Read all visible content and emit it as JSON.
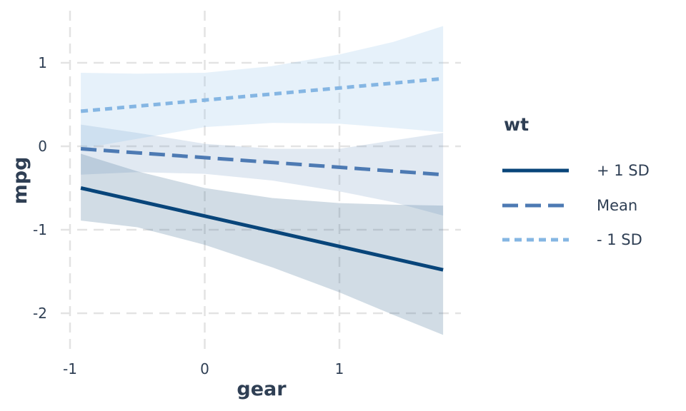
{
  "chart_data": {
    "type": "line",
    "xlabel": "gear",
    "ylabel": "mpg",
    "xlim": [
      -1.06,
      1.9
    ],
    "ylim": [
      -2.48,
      1.6
    ],
    "x_ticks": [
      -1,
      0,
      1
    ],
    "x_tick_labels": [
      "-1",
      "0",
      "1"
    ],
    "y_ticks": [
      -2,
      -1,
      0,
      1
    ],
    "y_tick_labels": [
      "-2",
      "-1",
      "0",
      "1"
    ],
    "grid": true,
    "legend": {
      "title": "wt",
      "position": "right"
    },
    "series": [
      {
        "name": "+ 1 SD",
        "color": "#08457a",
        "dash": "solid",
        "x": [
          -0.92,
          1.77
        ],
        "y": [
          -0.5,
          -1.48
        ],
        "band": {
          "x": [
            -0.92,
            -0.5,
            0.0,
            0.5,
            1.0,
            1.4,
            1.77
          ],
          "lower": [
            -0.89,
            -0.97,
            -1.18,
            -1.45,
            -1.75,
            -2.02,
            -2.26
          ],
          "upper": [
            -0.09,
            -0.3,
            -0.5,
            -0.62,
            -0.68,
            -0.7,
            -0.71
          ]
        }
      },
      {
        "name": "Mean",
        "color": "#4d7ab3",
        "dash": "dashed",
        "x": [
          -0.92,
          1.77
        ],
        "y": [
          -0.03,
          -0.34
        ],
        "band": {
          "x": [
            -0.92,
            -0.5,
            0.0,
            0.5,
            1.0,
            1.4,
            1.77
          ],
          "lower": [
            -0.34,
            -0.31,
            -0.33,
            -0.41,
            -0.54,
            -0.67,
            -0.83
          ],
          "upper": [
            0.26,
            0.16,
            0.03,
            -0.03,
            -0.03,
            0.07,
            0.16
          ]
        }
      },
      {
        "name": "- 1 SD",
        "color": "#85b6e3",
        "dash": "dotted",
        "x": [
          -0.92,
          1.77
        ],
        "y": [
          0.42,
          0.81
        ],
        "band": {
          "x": [
            -0.92,
            -0.5,
            0.0,
            0.5,
            1.0,
            1.4,
            1.77
          ],
          "lower": [
            -0.03,
            0.09,
            0.23,
            0.28,
            0.27,
            0.22,
            0.17
          ],
          "upper": [
            0.88,
            0.87,
            0.88,
            0.96,
            1.1,
            1.25,
            1.44
          ]
        }
      }
    ]
  }
}
